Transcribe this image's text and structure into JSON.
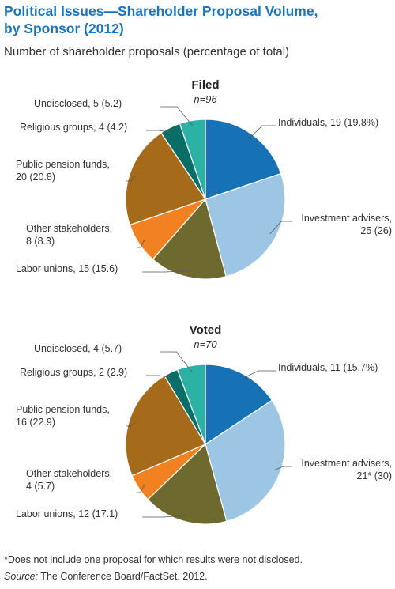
{
  "title_line1": "Political Issues—Shareholder Proposal Volume,",
  "title_line2": "by Sponsor (2012)",
  "subtitle": "Number of shareholder proposals (percentage of total)",
  "footnote": "*Does not include one proposal for which results were not disclosed.",
  "source_label": "Source:",
  "source_text": " The Conference Board/FactSet, 2012.",
  "colors": {
    "Individuals": "#1671b5",
    "Investment advisers": "#9dc6e5",
    "Labor unions": "#6e6a2f",
    "Other stakeholders": "#f18121",
    "Public pension funds": "#a56b1b",
    "Religious groups": "#0a6e68",
    "Undisclosed": "#2cb1a5"
  },
  "chart_data": [
    {
      "type": "pie",
      "title": "Filed",
      "n_label": "n=96",
      "total": 96,
      "slices": [
        {
          "name": "Individuals",
          "value": 19,
          "percent": 19.8,
          "label_line1": "Individuals, 19 (19.8%)",
          "label_line2": ""
        },
        {
          "name": "Investment advisers",
          "value": 25,
          "percent": 26,
          "label_line1": "Investment advisers,",
          "label_line2": "25 (26)"
        },
        {
          "name": "Labor unions",
          "value": 15,
          "percent": 15.6,
          "label_line1": "Labor unions, 15 (15.6)",
          "label_line2": ""
        },
        {
          "name": "Other stakeholders",
          "value": 8,
          "percent": 8.3,
          "label_line1": "Other stakeholders,",
          "label_line2": "8 (8.3)"
        },
        {
          "name": "Public pension funds",
          "value": 20,
          "percent": 20.8,
          "label_line1": "Public pension funds,",
          "label_line2": "20 (20.8)"
        },
        {
          "name": "Religious groups",
          "value": 4,
          "percent": 4.2,
          "label_line1": "Religious groups, 4 (4.2)",
          "label_line2": ""
        },
        {
          "name": "Undisclosed",
          "value": 5,
          "percent": 5.2,
          "label_line1": "Undisclosed, 5 (5.2)",
          "label_line2": ""
        }
      ]
    },
    {
      "type": "pie",
      "title": "Voted",
      "n_label": "n=70",
      "total": 70,
      "slices": [
        {
          "name": "Individuals",
          "value": 11,
          "percent": 15.7,
          "label_line1": "Individuals, 11 (15.7%)",
          "label_line2": ""
        },
        {
          "name": "Investment advisers",
          "value": 21,
          "percent": 30,
          "label_line1": "Investment advisers,",
          "label_line2": "21* (30)"
        },
        {
          "name": "Labor unions",
          "value": 12,
          "percent": 17.1,
          "label_line1": "Labor unions, 12 (17.1)",
          "label_line2": ""
        },
        {
          "name": "Other stakeholders",
          "value": 4,
          "percent": 5.7,
          "label_line1": "Other stakeholders,",
          "label_line2": "4 (5.7)"
        },
        {
          "name": "Public pension funds",
          "value": 16,
          "percent": 22.9,
          "label_line1": "Public pension funds,",
          "label_line2": "16 (22.9)"
        },
        {
          "name": "Religious groups",
          "value": 2,
          "percent": 2.9,
          "label_line1": "Religious groups, 2 (2.9)",
          "label_line2": ""
        },
        {
          "name": "Undisclosed",
          "value": 4,
          "percent": 5.7,
          "label_line1": "Undisclosed, 4 (5.7)",
          "label_line2": ""
        }
      ]
    }
  ]
}
